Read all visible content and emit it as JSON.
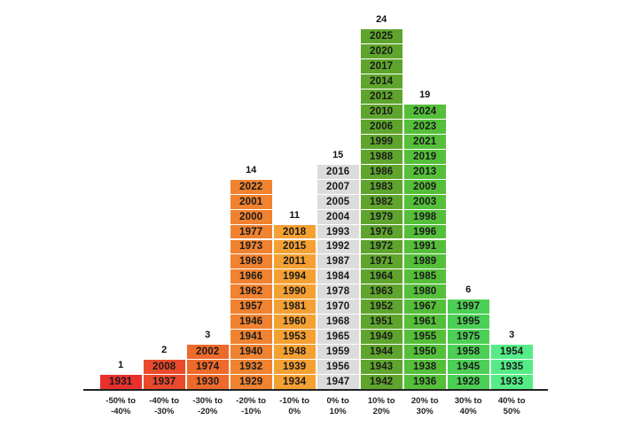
{
  "chart_data": {
    "type": "bar",
    "categories": [
      "-50% to\n-40%",
      "-40% to\n-30%",
      "-30% to\n-20%",
      "-20% to\n-10%",
      "-10% to\n0%",
      "0% to\n10%",
      "10% to\n20%",
      "20% to\n30%",
      "30% to\n40%",
      "40% to\n50%"
    ],
    "values": [
      1,
      2,
      3,
      14,
      11,
      15,
      24,
      19,
      6,
      3
    ],
    "years": [
      [
        "1931"
      ],
      [
        "1937",
        "2008"
      ],
      [
        "1930",
        "1974",
        "2002"
      ],
      [
        "1929",
        "1932",
        "1940",
        "1941",
        "1946",
        "1957",
        "1962",
        "1966",
        "1969",
        "1973",
        "1977",
        "2000",
        "2001",
        "2022"
      ],
      [
        "1934",
        "1939",
        "1948",
        "1953",
        "1960",
        "1981",
        "1990",
        "1994",
        "2011",
        "2015",
        "2018"
      ],
      [
        "1947",
        "1956",
        "1959",
        "1965",
        "1968",
        "1970",
        "1978",
        "1984",
        "1987",
        "1992",
        "1993",
        "2004",
        "2005",
        "2007",
        "2016"
      ],
      [
        "1942",
        "1943",
        "1944",
        "1949",
        "1951",
        "1952",
        "1963",
        "1964",
        "1971",
        "1972",
        "1976",
        "1979",
        "1982",
        "1983",
        "1986",
        "1988",
        "1999",
        "2006",
        "2010",
        "2012",
        "2014",
        "2017",
        "2020",
        "2025"
      ],
      [
        "1936",
        "1938",
        "1950",
        "1955",
        "1961",
        "1967",
        "1980",
        "1985",
        "1989",
        "1991",
        "1996",
        "1998",
        "2003",
        "2009",
        "2013",
        "2019",
        "2021",
        "2023",
        "2024"
      ],
      [
        "1928",
        "1945",
        "1958",
        "1975",
        "1995",
        "1997"
      ],
      [
        "1933",
        "1935",
        "1954"
      ]
    ],
    "colors": [
      "#e8312e",
      "#ea4a2c",
      "#ee6a2b",
      "#f08230",
      "#f5a033",
      "#dcdcdc",
      "#5fa52d",
      "#55bf3a",
      "#4ccf55",
      "#55ec88"
    ],
    "title": "",
    "xlabel": "",
    "ylabel": "",
    "grid": false,
    "legend": "none"
  }
}
